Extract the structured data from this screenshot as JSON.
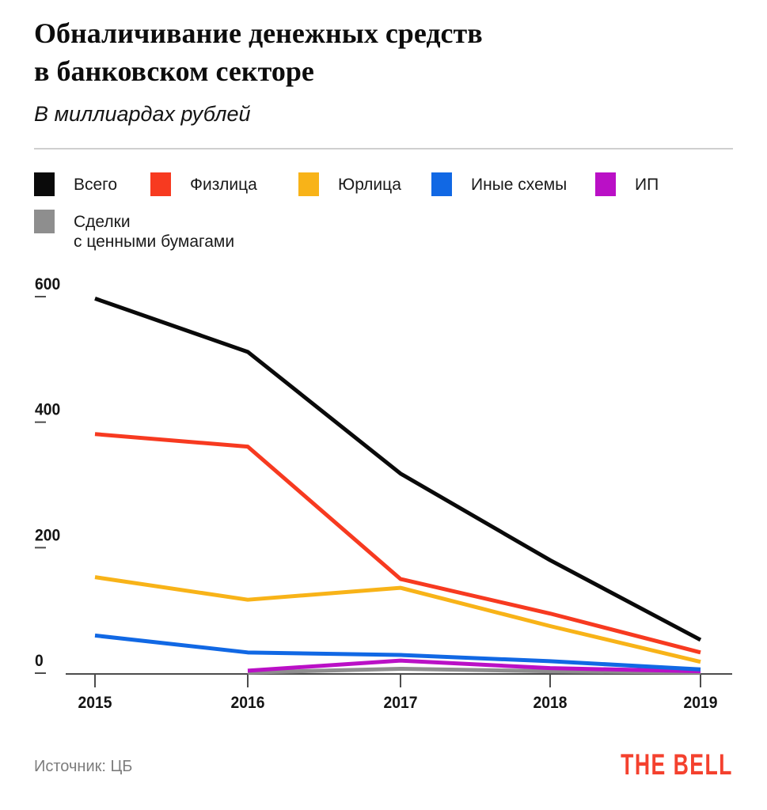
{
  "header": {
    "title_line1": "Обналичивание денежных средств",
    "title_line2": "в банковском секторе",
    "subtitle": "В миллиардах рублей"
  },
  "legend": {
    "items": [
      {
        "label": "Всего",
        "color": "#0a0a0a"
      },
      {
        "label": "Физлица",
        "color": "#f73a20"
      },
      {
        "label": "Юрлица",
        "color": "#f8b318"
      },
      {
        "label": "Иные схемы",
        "color": "#1168e4"
      },
      {
        "label": "ИП",
        "color": "#ba10c6"
      },
      {
        "label": "Сделки\nс ценными бумагами",
        "color": "#8e8e8e"
      }
    ]
  },
  "chart_data": {
    "type": "line",
    "title": "Обналичивание денежных средств в банковском секторе",
    "subtitle": "В миллиардах рублей",
    "xlabel": "",
    "ylabel": "млрд рублей",
    "x": [
      2015,
      2016,
      2017,
      2018,
      2019
    ],
    "yticks": [
      0,
      200,
      400,
      600
    ],
    "ylim": [
      0,
      600
    ],
    "grid": false,
    "legend_position": "top",
    "series": [
      {
        "name": "Всего",
        "color": "#0a0a0a",
        "values": [
          597,
          512,
          318,
          180,
          53
        ]
      },
      {
        "name": "Физлица",
        "color": "#f73a20",
        "values": [
          381,
          361,
          150,
          95,
          33
        ]
      },
      {
        "name": "Юрлица",
        "color": "#f8b318",
        "values": [
          153,
          117,
          136,
          75,
          18
        ]
      },
      {
        "name": "Иные схемы",
        "color": "#1168e4",
        "values": [
          60,
          33,
          29,
          19,
          6
        ]
      },
      {
        "name": "ИП",
        "color": "#ba10c6",
        "values": [
          null,
          4,
          20,
          8,
          3
        ]
      },
      {
        "name": "Сделки с ценными бумагами",
        "color": "#8e8e8e",
        "values": [
          null,
          1,
          7,
          3,
          1
        ]
      }
    ]
  },
  "axis_style": {
    "line_color": "#4d4d4d",
    "label_color": "#141414"
  },
  "footer": {
    "source": "Источник: ЦБ",
    "logo": "THE BELL"
  }
}
